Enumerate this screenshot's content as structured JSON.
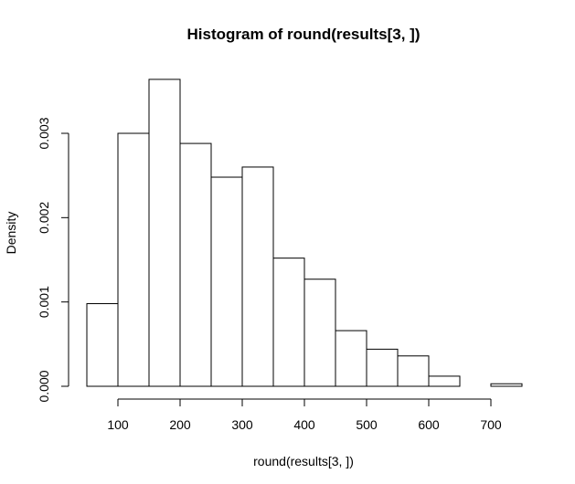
{
  "chart_data": {
    "type": "bar",
    "title": "Histogram of round(results[3, ])",
    "xlabel": "round(results[3, ])",
    "ylabel": "Density",
    "bin_edges": [
      50,
      100,
      150,
      200,
      250,
      300,
      350,
      400,
      450,
      500,
      550,
      600,
      650,
      700,
      750
    ],
    "values": [
      0.00098,
      0.003,
      0.00364,
      0.00288,
      0.00248,
      0.0026,
      0.00152,
      0.00127,
      0.00066,
      0.00044,
      0.00036,
      0.00012,
      0.0,
      3e-05
    ],
    "xlim": [
      50,
      750
    ],
    "ylim": [
      0,
      0.0035
    ],
    "x_ticks": [
      100,
      200,
      300,
      400,
      500,
      600,
      700
    ],
    "x_tick_labels": [
      "100",
      "200",
      "300",
      "400",
      "500",
      "600",
      "700"
    ],
    "y_ticks": [
      0,
      0.001,
      0.002,
      0.003
    ],
    "y_tick_labels": [
      "0.000",
      "0.001",
      "0.002",
      "0.003"
    ],
    "grid": false,
    "bar_fill": "#ffffff",
    "bar_stroke": "#000000"
  }
}
